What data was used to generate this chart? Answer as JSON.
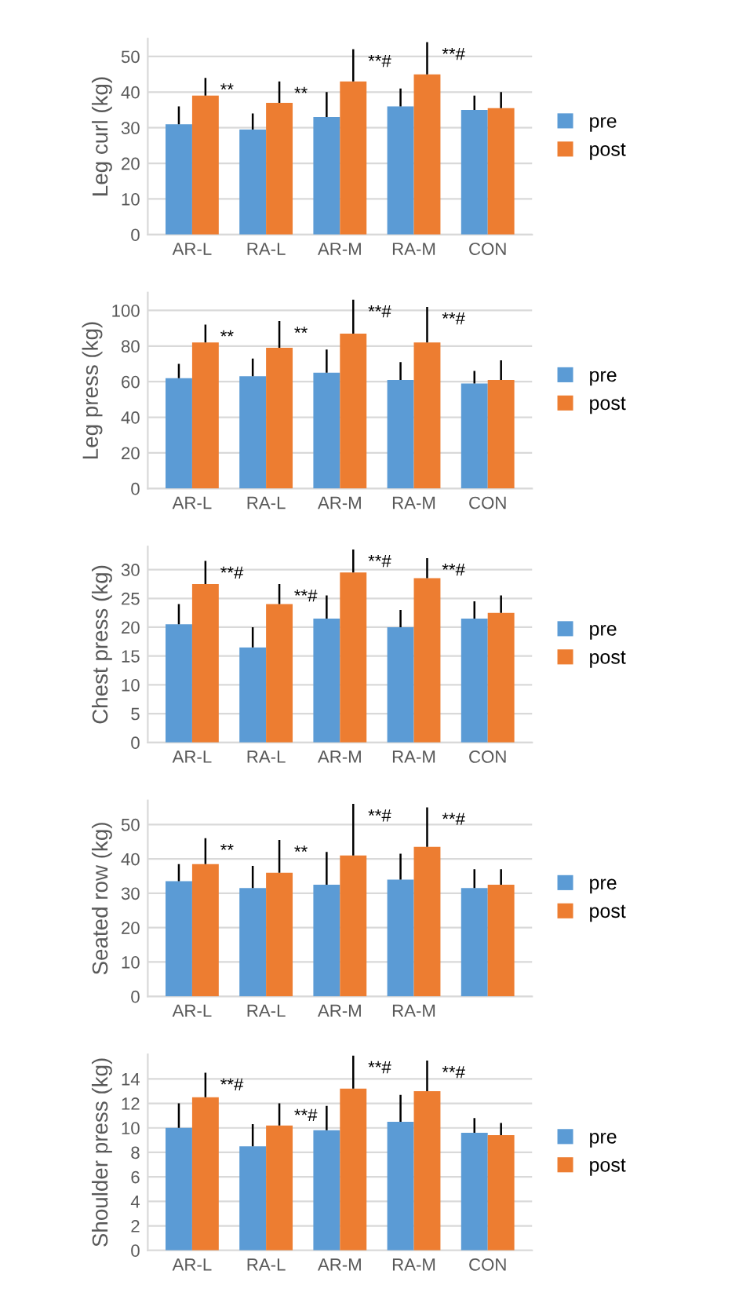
{
  "chart_data": [
    {
      "type": "bar",
      "ylabel": "Leg curl (kg)",
      "categories": [
        "AR-L",
        "RA-L",
        "AR-M",
        "RA-M",
        "CON"
      ],
      "ylim": [
        0,
        55
      ],
      "yticks": [
        0,
        10,
        20,
        30,
        40,
        50
      ],
      "grid": "y",
      "legend": "right",
      "series": [
        {
          "name": "pre",
          "color": "#5b9bd5",
          "values": [
            31,
            29.5,
            33,
            36,
            35
          ],
          "errors": [
            [
              31,
              36
            ],
            [
              29.5,
              34
            ],
            [
              33,
              40
            ],
            [
              36,
              41
            ],
            [
              35,
              39
            ]
          ]
        },
        {
          "name": "post",
          "color": "#ed7d31",
          "values": [
            39,
            37,
            43,
            45,
            35.5
          ],
          "errors": [
            [
              39,
              44
            ],
            [
              37,
              43
            ],
            [
              43,
              52
            ],
            [
              45,
              54
            ],
            [
              35.5,
              40
            ]
          ]
        }
      ],
      "annotations": [
        "**",
        "**",
        "**#",
        "**#"
      ]
    },
    {
      "type": "bar",
      "ylabel": "Leg press (kg)",
      "categories": [
        "AR-L",
        "RA-L",
        "AR-M",
        "RA-M",
        "CON"
      ],
      "ylim": [
        0,
        110
      ],
      "yticks": [
        0,
        20,
        40,
        60,
        80,
        100
      ],
      "grid": "y",
      "legend": "right",
      "series": [
        {
          "name": "pre",
          "color": "#5b9bd5",
          "values": [
            62,
            63,
            65,
            61,
            59
          ],
          "errors": [
            [
              62,
              70
            ],
            [
              63,
              73
            ],
            [
              65,
              78
            ],
            [
              61,
              71
            ],
            [
              59,
              66
            ]
          ]
        },
        {
          "name": "post",
          "color": "#ed7d31",
          "values": [
            82,
            79,
            87,
            82,
            61
          ],
          "errors": [
            [
              82,
              92
            ],
            [
              79,
              94
            ],
            [
              87,
              106
            ],
            [
              82,
              102
            ],
            [
              61,
              72
            ]
          ]
        }
      ],
      "annotations": [
        "**",
        "**",
        "**#",
        "**#"
      ]
    },
    {
      "type": "bar",
      "ylabel": "Chest press (kg)",
      "categories": [
        "AR-L",
        "RA-L",
        "AR-M",
        "RA-M",
        "CON"
      ],
      "ylim": [
        0,
        34
      ],
      "yticks": [
        0,
        5,
        10,
        15,
        20,
        25,
        30
      ],
      "grid": "y",
      "legend": "right",
      "series": [
        {
          "name": "pre",
          "color": "#5b9bd5",
          "values": [
            20.5,
            16.5,
            21.5,
            20,
            21.5
          ],
          "errors": [
            [
              20.5,
              24
            ],
            [
              16.5,
              20
            ],
            [
              21.5,
              25.5
            ],
            [
              20,
              23
            ],
            [
              21.5,
              24.5
            ]
          ]
        },
        {
          "name": "post",
          "color": "#ed7d31",
          "values": [
            27.5,
            24,
            29.5,
            28.5,
            22.5
          ],
          "errors": [
            [
              27.5,
              31.5
            ],
            [
              24,
              27.5
            ],
            [
              29.5,
              33.5
            ],
            [
              28.5,
              32
            ],
            [
              22.5,
              25.5
            ]
          ]
        }
      ],
      "annotations": [
        "**#",
        "**#",
        "**#",
        "**#"
      ]
    },
    {
      "type": "bar",
      "ylabel": "Seated row (kg)",
      "categories": [
        "AR-L",
        "RA-L",
        "AR-M",
        "RA-M",
        null
      ],
      "ylim": [
        0,
        57
      ],
      "yticks": [
        0,
        10,
        20,
        30,
        40,
        50
      ],
      "grid": "y",
      "legend": "right",
      "series": [
        {
          "name": "pre",
          "color": "#5b9bd5",
          "values": [
            33.5,
            31.5,
            32.5,
            34,
            31.5
          ],
          "errors": [
            [
              33.5,
              38.5
            ],
            [
              31.5,
              38
            ],
            [
              32.5,
              42
            ],
            [
              34,
              41.5
            ],
            [
              31.5,
              37
            ]
          ]
        },
        {
          "name": "post",
          "color": "#ed7d31",
          "values": [
            38.5,
            36,
            41,
            43.5,
            32.5
          ],
          "errors": [
            [
              38.5,
              46
            ],
            [
              36,
              45.5
            ],
            [
              41,
              56
            ],
            [
              43.5,
              55
            ],
            [
              32.5,
              37
            ]
          ]
        }
      ],
      "annotations": [
        "**",
        "**",
        "**#",
        "**#"
      ]
    },
    {
      "type": "bar",
      "ylabel": "Shoulder press (kg)",
      "categories": [
        "AR-L",
        "RA-L",
        "AR-M",
        "RA-M",
        "CON"
      ],
      "ylim": [
        0,
        16
      ],
      "yticks": [
        0,
        2,
        4,
        6,
        8,
        10,
        12,
        14
      ],
      "grid": "y",
      "legend": "right",
      "series": [
        {
          "name": "pre",
          "color": "#5b9bd5",
          "values": [
            10,
            8.5,
            9.8,
            10.5,
            9.6
          ],
          "errors": [
            [
              10,
              12
            ],
            [
              8.5,
              10.3
            ],
            [
              9.8,
              11.8
            ],
            [
              10.5,
              12.7
            ],
            [
              9.6,
              10.8
            ]
          ]
        },
        {
          "name": "post",
          "color": "#ed7d31",
          "values": [
            12.5,
            10.2,
            13.2,
            13,
            9.4
          ],
          "errors": [
            [
              12.5,
              14.5
            ],
            [
              10.2,
              12
            ],
            [
              13.2,
              15.9
            ],
            [
              13,
              15.5
            ],
            [
              9.4,
              10.4
            ]
          ]
        }
      ],
      "annotations": [
        "**#",
        "**#",
        "**#",
        "**#"
      ]
    }
  ]
}
